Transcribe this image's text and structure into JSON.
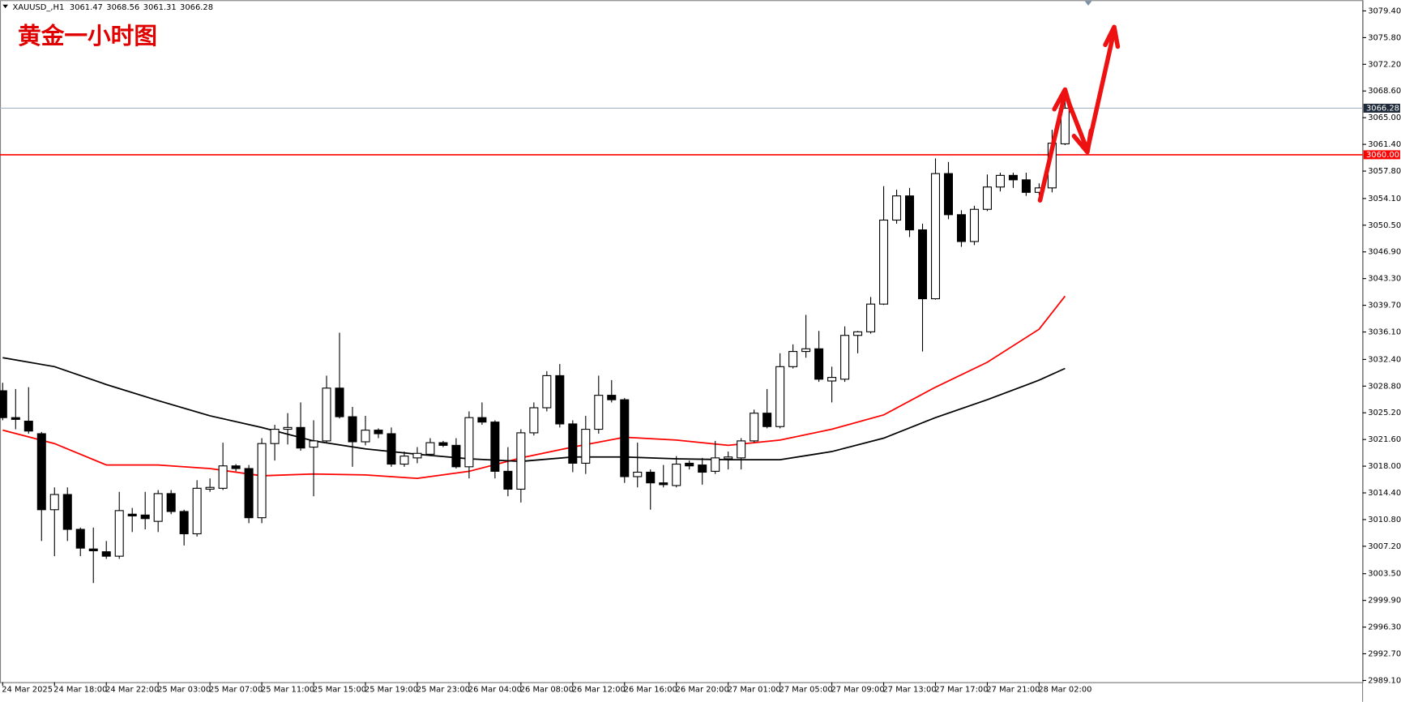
{
  "chart_data": {
    "type": "candlestick",
    "symbol": "XAUUSD_,H1",
    "title": "黄金一小时图",
    "categories": [
      "24 Mar 2025",
      null,
      null,
      null,
      "24 Mar 18:00",
      null,
      null,
      null,
      "24 Mar 22:00",
      null,
      null,
      null,
      "25 Mar 03:00",
      null,
      null,
      null,
      "25 Mar 07:00",
      null,
      null,
      null,
      "25 Mar 11:00",
      null,
      null,
      null,
      "25 Mar 15:00",
      null,
      null,
      null,
      "25 Mar 19:00",
      null,
      null,
      null,
      "25 Mar 23:00",
      null,
      null,
      null,
      "26 Mar 04:00",
      null,
      null,
      null,
      "26 Mar 08:00",
      null,
      null,
      null,
      "26 Mar 12:00",
      null,
      null,
      null,
      "26 Mar 16:00",
      null,
      null,
      null,
      "26 Mar 20:00",
      null,
      null,
      null,
      "27 Mar 01:00",
      null,
      null,
      null,
      "27 Mar 05:00",
      null,
      null,
      null,
      "27 Mar 09:00",
      null,
      null,
      null,
      "27 Mar 13:00",
      null,
      null,
      null,
      "27 Mar 17:00",
      null,
      null,
      null,
      "27 Mar 21:00",
      null,
      null,
      null,
      "28 Mar 02:00",
      null,
      null
    ],
    "open": [
      3028.17,
      3024.55,
      3024.07,
      3022.38,
      3012.13,
      3014.18,
      3009.48,
      3006.83,
      3006.46,
      3005.86,
      3011.53,
      3011.41,
      3010.56,
      3014.3,
      3011.89,
      3008.88,
      3014.9,
      3015.02,
      3018.04,
      3017.68,
      3011.05,
      3021.05,
      3022.98,
      3023.22,
      3020.57,
      3021.41,
      3028.53,
      3024.67,
      3021.29,
      3022.86,
      3022.38,
      3018.28,
      3019.12,
      3019.61,
      3021.17,
      3020.81,
      3017.92,
      3024.55,
      3023.95,
      3017.31,
      3014.9,
      3022.5,
      3025.88,
      3030.21,
      3023.7,
      3018.4,
      3022.98,
      3027.56,
      3026.96,
      3016.59,
      3017.19,
      3015.75,
      3015.39,
      3018.4,
      3018.16,
      3017.31,
      3019.0,
      3019.12,
      3021.41,
      3025.15,
      3023.34,
      3031.42,
      3033.47,
      3033.83,
      3029.49,
      3029.73,
      3035.64,
      3036.12,
      3039.86,
      3051.19,
      3054.45,
      3049.87,
      3040.58,
      3057.46,
      3051.92,
      3048.3,
      3052.64,
      3055.65,
      3057.22,
      3056.62,
      3054.93,
      3055.53,
      3061.47
    ],
    "high": [
      3029.25,
      3028.41,
      3028.65,
      3022.62,
      3015.14,
      3015.14,
      3009.72,
      3009.72,
      3007.91,
      3014.54,
      3012.37,
      3014.54,
      3014.78,
      3014.78,
      3012.13,
      3016.11,
      3016.35,
      3021.17,
      3018.28,
      3018.16,
      3021.78,
      3023.58,
      3025.15,
      3026.6,
      3024.19,
      3030.21,
      3036.0,
      3026.0,
      3024.79,
      3023.1,
      3023.22,
      3019.97,
      3020.57,
      3021.78,
      3021.41,
      3021.78,
      3025.39,
      3026.6,
      3024.19,
      3020.57,
      3022.98,
      3026.6,
      3030.82,
      3031.78,
      3024.19,
      3024.79,
      3030.21,
      3029.61,
      3027.2,
      3021.17,
      3017.56,
      3018.16,
      3019.36,
      3018.76,
      3019.12,
      3021.41,
      3019.97,
      3021.78,
      3025.63,
      3028.41,
      3033.23,
      3034.43,
      3038.41,
      3036.24,
      3031.42,
      3036.85,
      3036.24,
      3040.82,
      3055.77,
      3055.29,
      3055.53,
      3050.71,
      3059.51,
      3059.03,
      3052.52,
      3053.12,
      3057.34,
      3057.58,
      3057.58,
      3057.58,
      3056.14,
      3063.37,
      3068.56
    ],
    "low": [
      3024.19,
      3022.98,
      3022.38,
      3007.91,
      3005.86,
      3007.91,
      3005.86,
      3002.24,
      3005.5,
      3005.5,
      3009.12,
      3009.48,
      3009.12,
      3011.53,
      3007.31,
      3008.51,
      3014.54,
      3014.78,
      3017.31,
      3010.32,
      3010.32,
      3018.76,
      3020.93,
      3020.09,
      3013.94,
      3021.17,
      3024.43,
      3017.92,
      3020.81,
      3021.78,
      3017.92,
      3017.92,
      3018.4,
      3019.36,
      3020.57,
      3017.68,
      3016.35,
      3023.58,
      3016.35,
      3013.94,
      3013.1,
      3022.14,
      3025.39,
      3023.22,
      3017.19,
      3016.95,
      3022.38,
      3026.6,
      3015.75,
      3015.14,
      3012.13,
      3015.14,
      3015.14,
      3017.56,
      3015.51,
      3016.95,
      3017.56,
      3017.56,
      3021.17,
      3023.1,
      3023.1,
      3031.18,
      3032.63,
      3029.37,
      3026.6,
      3029.37,
      3033.23,
      3035.88,
      3039.74,
      3050.71,
      3048.9,
      3033.47,
      3040.46,
      3051.31,
      3047.58,
      3047.82,
      3052.4,
      3055.05,
      3055.53,
      3054.45,
      3054.57,
      3054.93,
      3061.31
    ],
    "close": [
      3024.55,
      3024.31,
      3022.74,
      3012.13,
      3014.18,
      3009.48,
      3006.95,
      3006.59,
      3005.86,
      3012.01,
      3011.29,
      3010.93,
      3014.3,
      3011.89,
      3008.88,
      3015.02,
      3015.14,
      3018.04,
      3017.68,
      3011.05,
      3021.05,
      3022.98,
      3023.22,
      3020.45,
      3021.41,
      3028.53,
      3024.67,
      3021.29,
      3022.86,
      3022.38,
      3018.28,
      3019.36,
      3019.73,
      3021.17,
      3020.81,
      3017.92,
      3024.55,
      3023.95,
      3017.31,
      3014.9,
      3022.5,
      3025.88,
      3030.21,
      3023.7,
      3018.4,
      3022.98,
      3027.56,
      3026.96,
      3016.59,
      3017.19,
      3015.75,
      3015.51,
      3018.28,
      3018.04,
      3017.19,
      3019.12,
      3019.24,
      3021.41,
      3025.15,
      3023.34,
      3031.42,
      3033.47,
      3033.83,
      3029.73,
      3029.97,
      3035.64,
      3036.12,
      3039.86,
      3051.19,
      3054.45,
      3049.87,
      3040.58,
      3057.46,
      3051.92,
      3048.3,
      3052.64,
      3055.65,
      3057.22,
      3056.62,
      3054.93,
      3055.53,
      3061.56,
      3066.28
    ],
    "up_color": "#ffffff",
    "down_color": "#000000",
    "indicators": [
      {
        "color": "#ff0000",
        "x": [
          0,
          4,
          8,
          12,
          16,
          20,
          24,
          28,
          32,
          36,
          40,
          44,
          48,
          52,
          56,
          60,
          64,
          68,
          72,
          76,
          80,
          82
        ],
        "values": [
          3022.86,
          3021.05,
          3018.16,
          3018.16,
          3017.68,
          3016.71,
          3016.95,
          3016.83,
          3016.35,
          3017.31,
          3019.12,
          3020.57,
          3021.9,
          3021.53,
          3020.81,
          3021.53,
          3022.98,
          3024.91,
          3028.65,
          3032.02,
          3036.48,
          3040.94
        ]
      },
      {
        "color": "#000000",
        "x": [
          0,
          4,
          8,
          12,
          16,
          20,
          24,
          28,
          32,
          36,
          40,
          44,
          48,
          52,
          56,
          60,
          64,
          68,
          72,
          76,
          80,
          82
        ],
        "values": [
          3032.63,
          3031.42,
          3029.01,
          3026.84,
          3024.79,
          3023.22,
          3021.41,
          3020.33,
          3019.61,
          3019.0,
          3018.64,
          3019.24,
          3019.24,
          3019.0,
          3018.88,
          3018.88,
          3019.97,
          3021.78,
          3024.55,
          3026.96,
          3029.61,
          3031.18
        ]
      }
    ],
    "levels": [
      {
        "value": 3060,
        "label": "3060.00",
        "color": "#ff0000"
      }
    ],
    "ylim": [
      2988.87,
      3080.85
    ],
    "yticks": [
      {
        "value": 3079.4,
        "label": "3079.40"
      },
      {
        "value": 3075.8,
        "label": "3075.80"
      },
      {
        "value": 3072.2,
        "label": "3072.20"
      },
      {
        "value": 3068.6,
        "label": "3068.60"
      },
      {
        "value": 3065,
        "label": "3065.00"
      },
      {
        "value": 3061.4,
        "label": "3061.40"
      },
      {
        "value": 3057.8,
        "label": "3057.80"
      },
      {
        "value": 3054.1,
        "label": "3054.10"
      },
      {
        "value": 3050.5,
        "label": "3050.50"
      },
      {
        "value": 3046.9,
        "label": "3046.90"
      },
      {
        "value": 3043.3,
        "label": "3043.30"
      },
      {
        "value": 3039.7,
        "label": "3039.70"
      },
      {
        "value": 3036.1,
        "label": "3036.10"
      },
      {
        "value": 3032.4,
        "label": "3032.40"
      },
      {
        "value": 3028.8,
        "label": "3028.80"
      },
      {
        "value": 3025.2,
        "label": "3025.20"
      },
      {
        "value": 3021.6,
        "label": "3021.60"
      },
      {
        "value": 3018,
        "label": "3018.00"
      },
      {
        "value": 3014.4,
        "label": "3014.40"
      },
      {
        "value": 3010.8,
        "label": "3010.80"
      },
      {
        "value": 3007.2,
        "label": "3007.20"
      },
      {
        "value": 3003.5,
        "label": "3003.50"
      },
      {
        "value": 2999.9,
        "label": "2999.90"
      },
      {
        "value": 2996.3,
        "label": "2996.30"
      },
      {
        "value": 2992.7,
        "label": "2992.70"
      },
      {
        "value": 2989.1,
        "label": "2989.10"
      }
    ],
    "grid": false
  }
}
